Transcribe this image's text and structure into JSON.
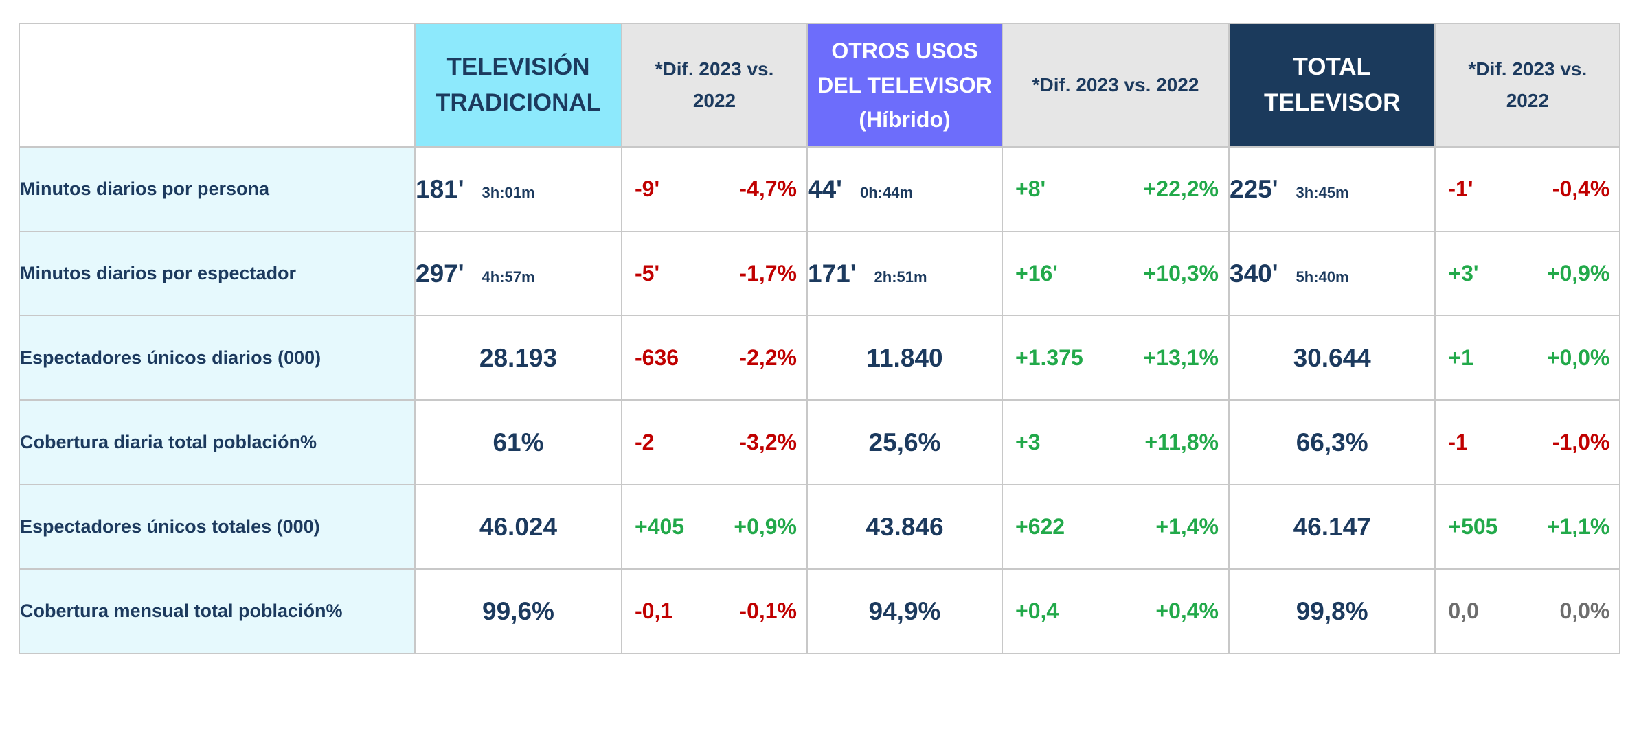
{
  "colors": {
    "positive": "#22a94a",
    "negative": "#c00000",
    "neutral": "#6d6d6d",
    "text": "#1c3a5e",
    "tv_header": "#8de9fc",
    "otros_header": "#6d6dfb",
    "total_header": "#1b3a5c",
    "diff_header": "#e6e6e6",
    "label_bg": "#e6f9fd"
  },
  "headers": {
    "tv": "TELEVISIÓN TRADICIONAL",
    "tv_diff": "*Dif. 2023 vs. 2022",
    "otros": "OTROS USOS DEL TELEVISOR (Híbrido)",
    "otros_diff": "*Dif. 2023 vs. 2022",
    "total": "TOTAL TELEVISOR",
    "total_diff": "*Dif. 2023 vs. 2022"
  },
  "rows": [
    {
      "label": "Minutos diarios por persona",
      "tv": {
        "main": "181'",
        "sub": "3h:01m"
      },
      "tv_diff": [
        "-9'",
        "-4,7%"
      ],
      "otros": {
        "main": "44'",
        "sub": "0h:44m"
      },
      "otros_diff": [
        "+8'",
        "+22,2%"
      ],
      "total": {
        "main": "225'",
        "sub": "3h:45m"
      },
      "total_diff": [
        "-1'",
        "-0,4%"
      ]
    },
    {
      "label": "Minutos diarios por espectador",
      "tv": {
        "main": "297'",
        "sub": "4h:57m"
      },
      "tv_diff": [
        "-5'",
        "-1,7%"
      ],
      "otros": {
        "main": "171'",
        "sub": "2h:51m"
      },
      "otros_diff": [
        "+16'",
        "+10,3%"
      ],
      "total": {
        "main": "340'",
        "sub": "5h:40m"
      },
      "total_diff": [
        "+3'",
        "+0,9%"
      ]
    },
    {
      "label": "Espectadores únicos diarios (000)",
      "tv": {
        "main": "28.193"
      },
      "tv_diff": [
        "-636",
        "-2,2%"
      ],
      "otros": {
        "main": "11.840"
      },
      "otros_diff": [
        "+1.375",
        "+13,1%"
      ],
      "total": {
        "main": "30.644"
      },
      "total_diff": [
        "+1",
        "+0,0%"
      ]
    },
    {
      "label": "Cobertura diaria total población%",
      "tv": {
        "main": "61%"
      },
      "tv_diff": [
        "-2",
        "-3,2%"
      ],
      "otros": {
        "main": "25,6%"
      },
      "otros_diff": [
        "+3",
        "+11,8%"
      ],
      "total": {
        "main": "66,3%"
      },
      "total_diff": [
        "-1",
        "-1,0%"
      ]
    },
    {
      "label": "Espectadores únicos totales (000)",
      "tv": {
        "main": "46.024"
      },
      "tv_diff": [
        "+405",
        "+0,9%"
      ],
      "otros": {
        "main": "43.846"
      },
      "otros_diff": [
        "+622",
        "+1,4%"
      ],
      "total": {
        "main": "46.147"
      },
      "total_diff": [
        "+505",
        "+1,1%"
      ]
    },
    {
      "label": "Cobertura mensual total población%",
      "tv": {
        "main": "99,6%"
      },
      "tv_diff": [
        "-0,1",
        "-0,1%"
      ],
      "otros": {
        "main": "94,9%"
      },
      "otros_diff": [
        "+0,4",
        "+0,4%"
      ],
      "total": {
        "main": "99,8%"
      },
      "total_diff": [
        "0,0",
        "0,0%"
      ]
    }
  ]
}
